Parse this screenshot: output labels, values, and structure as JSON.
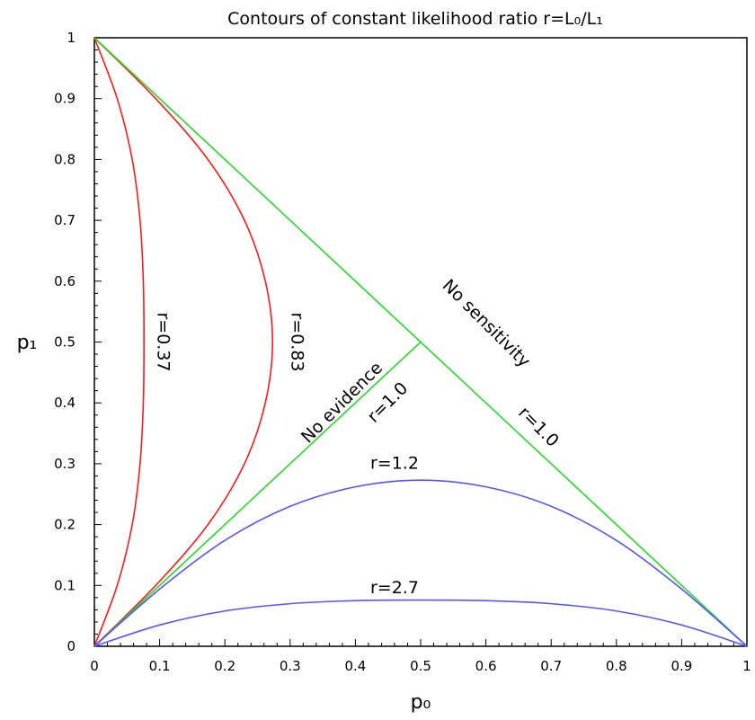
{
  "chart_data": {
    "type": "line",
    "title": "Contours of constant likelihood ratio r=L₀/L₁",
    "xlabel": "p₀",
    "ylabel": "p₁",
    "xlim": [
      0,
      1
    ],
    "ylim": [
      0,
      1
    ],
    "x_ticks": [
      "0",
      "0.1",
      "0.2",
      "0.3",
      "0.4",
      "0.5",
      "0.6",
      "0.7",
      "0.8",
      "0.9",
      "1"
    ],
    "y_ticks": [
      "0",
      "0.1",
      "0.2",
      "0.3",
      "0.4",
      "0.5",
      "0.6",
      "0.7",
      "0.8",
      "0.9",
      "1"
    ],
    "grid": false,
    "series": [
      {
        "name": "r=0.37",
        "color": "#ff1a1a",
        "x": [
          0,
          0.035,
          0.058,
          0.07,
          0.075,
          0.076,
          0.075,
          0.07,
          0.058,
          0.035,
          0
        ],
        "y": [
          0,
          0.1,
          0.2,
          0.3,
          0.4,
          0.5,
          0.6,
          0.7,
          0.8,
          0.9,
          1
        ]
      },
      {
        "name": "r=0.83",
        "color": "#ff1a1a",
        "x": [
          0,
          0.094,
          0.174,
          0.23,
          0.262,
          0.273,
          0.262,
          0.23,
          0.174,
          0.094,
          0
        ],
        "y": [
          0,
          0.1,
          0.2,
          0.3,
          0.4,
          0.5,
          0.6,
          0.7,
          0.8,
          0.9,
          1
        ]
      },
      {
        "name": "r=1.0",
        "color": "#22dd22",
        "x": [
          0,
          0.5
        ],
        "y": [
          0,
          0.5
        ]
      },
      {
        "name": "r=1.0",
        "color": "#22dd22",
        "x": [
          0,
          1
        ],
        "y": [
          1,
          0
        ]
      },
      {
        "name": "r=1.2",
        "color": "#5555ff",
        "x": [
          0,
          0.1,
          0.2,
          0.3,
          0.4,
          0.5,
          0.6,
          0.7,
          0.8,
          0.9,
          1
        ],
        "y": [
          0,
          0.094,
          0.174,
          0.23,
          0.262,
          0.273,
          0.262,
          0.23,
          0.174,
          0.094,
          0
        ]
      },
      {
        "name": "r=2.7",
        "color": "#5555ff",
        "x": [
          0,
          0.1,
          0.2,
          0.3,
          0.4,
          0.5,
          0.6,
          0.7,
          0.8,
          0.9,
          1
        ],
        "y": [
          0,
          0.035,
          0.058,
          0.07,
          0.075,
          0.076,
          0.075,
          0.07,
          0.058,
          0.035,
          0
        ]
      }
    ],
    "annotations": [
      {
        "text": "r=0.37",
        "x": 0.105,
        "y": 0.5,
        "rotation": 90
      },
      {
        "text": "r=0.83",
        "x": 0.31,
        "y": 0.5,
        "rotation": 90
      },
      {
        "text": "No sensitivity",
        "x": 0.6,
        "y": 0.53,
        "rotation": 45
      },
      {
        "text": "No evidence",
        "x": 0.38,
        "y": 0.4,
        "rotation": -45
      },
      {
        "text": "r=1.0",
        "x": 0.45,
        "y": 0.4,
        "rotation": -45
      },
      {
        "text": "r=1.0",
        "x": 0.68,
        "y": 0.36,
        "rotation": 45
      },
      {
        "text": "r=1.2",
        "x": 0.46,
        "y": 0.3
      },
      {
        "text": "r=2.7",
        "x": 0.46,
        "y": 0.095
      }
    ]
  }
}
